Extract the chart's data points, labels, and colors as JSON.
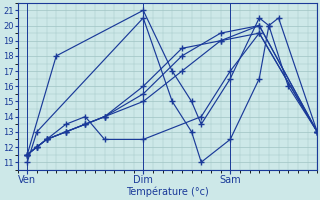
{
  "xlabel": "Température (°c)",
  "bg_color": "#cde8e8",
  "grid_color": "#a0c4c4",
  "line_color": "#1a3a99",
  "marker": "+",
  "ylim": [
    10.5,
    21.5
  ],
  "yticks": [
    11,
    12,
    13,
    14,
    15,
    16,
    17,
    18,
    19,
    20,
    21
  ],
  "xtick_labels": [
    "Ven",
    "Dim",
    "Sam"
  ],
  "xtick_positions": [
    0,
    12,
    21
  ],
  "vline_positions": [
    0,
    12,
    21
  ],
  "xlim": [
    -1,
    30
  ],
  "series": [
    {
      "x": [
        0,
        3,
        12,
        15,
        17,
        18,
        21,
        24,
        25,
        27,
        30
      ],
      "y": [
        11.5,
        18.0,
        21.0,
        17.0,
        15.0,
        13.5,
        16.5,
        20.5,
        20.0,
        16.0,
        13.0
      ]
    },
    {
      "x": [
        0,
        1,
        12,
        15,
        17,
        18,
        21,
        24,
        25,
        26,
        30
      ],
      "y": [
        11.0,
        13.0,
        20.5,
        15.0,
        13.0,
        11.0,
        12.5,
        16.5,
        20.0,
        20.5,
        13.0
      ]
    },
    {
      "x": [
        0,
        1,
        2,
        4,
        6,
        8,
        12,
        16,
        20,
        24,
        30
      ],
      "y": [
        11.5,
        12.0,
        12.5,
        13.0,
        13.5,
        14.0,
        15.0,
        17.0,
        19.0,
        20.0,
        13.0
      ]
    },
    {
      "x": [
        0,
        1,
        2,
        4,
        6,
        8,
        12,
        16,
        20,
        24,
        30
      ],
      "y": [
        11.5,
        12.0,
        12.5,
        13.0,
        13.5,
        14.0,
        15.5,
        18.0,
        19.5,
        20.0,
        13.0
      ]
    },
    {
      "x": [
        0,
        1,
        2,
        4,
        6,
        8,
        12,
        16,
        20,
        24,
        30
      ],
      "y": [
        11.5,
        12.0,
        12.5,
        13.0,
        13.5,
        14.0,
        16.0,
        18.5,
        19.0,
        19.5,
        13.0
      ]
    },
    {
      "x": [
        0,
        1,
        2,
        4,
        6,
        8,
        12,
        18,
        21,
        24,
        30
      ],
      "y": [
        11.5,
        12.0,
        12.5,
        13.5,
        14.0,
        12.5,
        12.5,
        14.0,
        17.0,
        19.5,
        13.0
      ]
    }
  ]
}
